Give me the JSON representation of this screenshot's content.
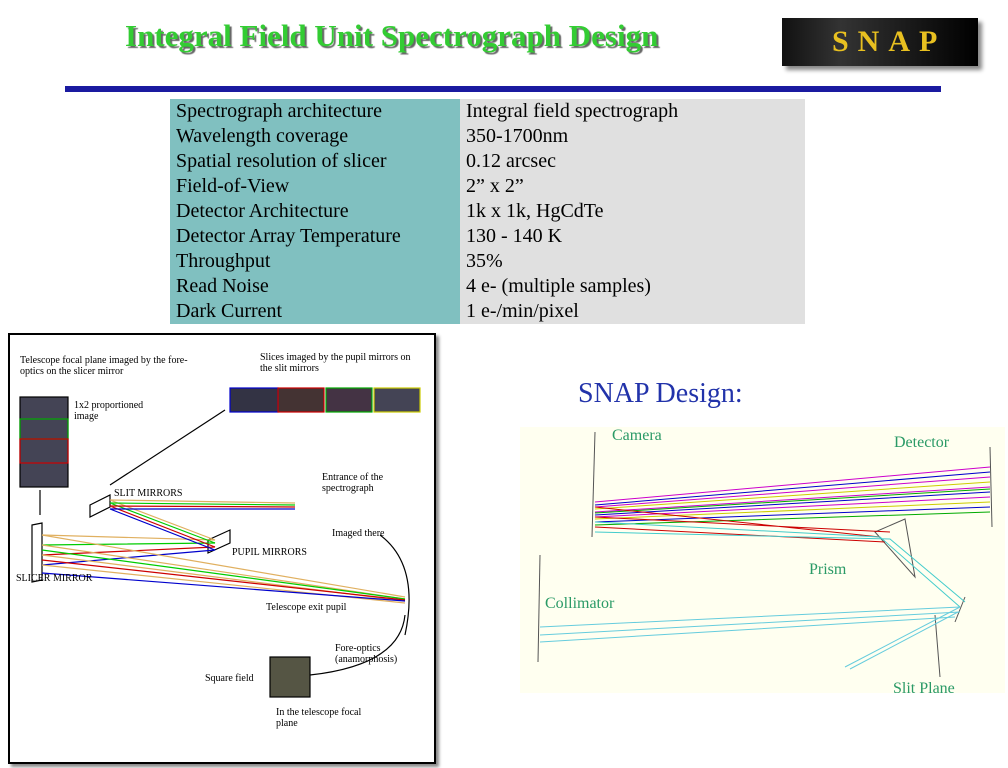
{
  "header": {
    "title": "Integral Field Unit Spectrograph Design",
    "logo": "SNAP"
  },
  "table": {
    "rows": [
      [
        "Spectrograph architecture",
        "Integral field spectrograph"
      ],
      [
        "Wavelength coverage",
        "350-1700nm"
      ],
      [
        "Spatial resolution of  slicer",
        "0.12 arcsec"
      ],
      [
        "Field-of-View",
        "2” x 2”"
      ],
      [
        "Detector Architecture",
        "1k x 1k, HgCdTe"
      ],
      [
        "Detector Array Temperature",
        "130 - 140 K"
      ],
      [
        "Throughput",
        "35%"
      ],
      [
        "Read Noise",
        "4 e- (multiple samples)"
      ],
      [
        "Dark Current",
        "1 e-/min/pixel"
      ]
    ]
  },
  "left_diagram": {
    "labels": [
      "Telescope focal plane imaged by the fore-optics on the slicer mirror",
      "Slices imaged by the pupil mirrors on the slit mirrors",
      "1x2 proportioned image",
      "SLIT MIRRORS",
      "Entrance of the spectrograph",
      "Imaged there",
      "PUPIL MIRRORS",
      "SLICER MIRROR",
      "Telescope exit pupil",
      "Fore-optics (anamorphosis)",
      "Square field",
      "In the telescope focal plane"
    ]
  },
  "right_diagram": {
    "title": "SNAP Design:",
    "labels": [
      "Camera",
      "Detector",
      "Prism",
      "Collimator",
      "Slit Plane"
    ]
  }
}
